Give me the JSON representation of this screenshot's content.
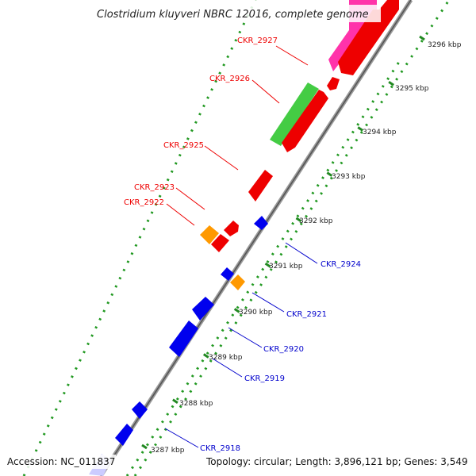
{
  "title": "Clostridium kluyveri NBRC 12016, complete genome",
  "footer": {
    "accession": "Accession: NC_011837",
    "summary": "Topology: circular; Length: 3,896,121 bp; Genes: 3,549"
  },
  "colors": {
    "background": "#ffffff",
    "strand_red": "#ff0000",
    "strand_blue": "#0000ee",
    "orange": "#ff9900",
    "green": "#44cc44",
    "magenta": "#ee33aa",
    "lavender": "#ccccff",
    "backbone": "#888888",
    "tick_green": "#228822",
    "label_red": "#ee0000",
    "label_blue": "#0000cc"
  },
  "axis_ticks": [
    {
      "label": "3287 kbp",
      "pos": 3287
    },
    {
      "label": "3288 kbp",
      "pos": 3288
    },
    {
      "label": "3289 kbp",
      "pos": 3289
    },
    {
      "label": "3290 kbp",
      "pos": 3290
    },
    {
      "label": "3291 kbp",
      "pos": 3291
    },
    {
      "label": "3292 kbp",
      "pos": 3292
    },
    {
      "label": "3293 kbp",
      "pos": 3293
    },
    {
      "label": "3294 kbp",
      "pos": 3294
    },
    {
      "label": "3295 kbp",
      "pos": 3295
    },
    {
      "label": "3296 kbp",
      "pos": 3296
    }
  ],
  "gene_labels_left": [
    {
      "label": "CKR_2927"
    },
    {
      "label": "CKR_2926"
    },
    {
      "label": "CKR_2925"
    },
    {
      "label": "CKR_2923"
    },
    {
      "label": "CKR_2922"
    }
  ],
  "gene_labels_right": [
    {
      "label": "CKR_2924"
    },
    {
      "label": "CKR_2921"
    },
    {
      "label": "CKR_2920"
    },
    {
      "label": "CKR_2919"
    },
    {
      "label": "CKR_2918"
    }
  ]
}
